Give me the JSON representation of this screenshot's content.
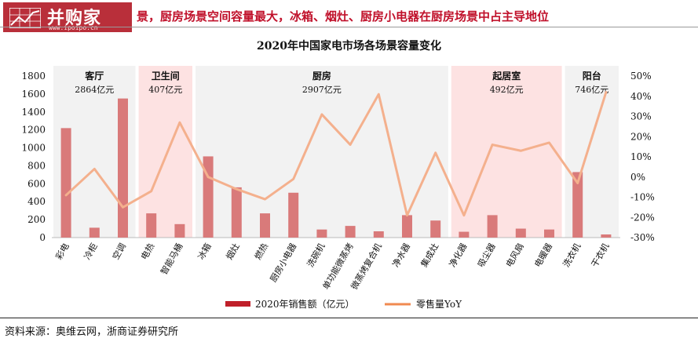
{
  "header": {
    "logo_text": "并购家",
    "logo_url": "www.ipoipo.cn",
    "headline": "景，厨房场景空间容量最大，冰箱、烟灶、厨房小电器在厨房场景中占主导地位"
  },
  "source": "资料来源：奥维云网，浙商证券研究所",
  "colors": {
    "bar": "#d97a7a",
    "line": "#f4b08d",
    "highlight": "#fde2e2",
    "neutral_band": "#f2f2f2",
    "headline": "#c0102a"
  },
  "chart_data": {
    "type": "bar",
    "title": "2020年中国家电市场各场景容量变化",
    "categories": [
      "彩电",
      "冷柜",
      "空调",
      "电热",
      "智能马桶",
      "冰箱",
      "烟灶",
      "燃热",
      "厨房小电器",
      "洗碗机",
      "单功能微蒸烤",
      "微蒸烤复合机",
      "净水器",
      "集成灶",
      "净化器",
      "吸尘器",
      "电风扇",
      "电暖器",
      "洗衣机",
      "干衣机"
    ],
    "series": [
      {
        "name": "2020年销售额（亿元）",
        "type": "bar",
        "axis": "left",
        "values": [
          1220,
          110,
          1550,
          270,
          150,
          905,
          560,
          270,
          500,
          90,
          130,
          70,
          250,
          190,
          65,
          250,
          100,
          90,
          730,
          35
        ]
      },
      {
        "name": "零售量YoY",
        "type": "line",
        "axis": "right",
        "unit": "%",
        "values": [
          -9,
          4,
          -15,
          -7,
          27,
          0,
          -6,
          -11,
          -1,
          31,
          16,
          41,
          -19,
          12,
          -19,
          16,
          13,
          17,
          -3,
          42
        ]
      }
    ],
    "y_left": {
      "min": 0,
      "max": 1800,
      "ticks": [
        "0",
        "200",
        "400",
        "600",
        "800",
        "1000",
        "1200",
        "1400",
        "1600",
        "1800"
      ]
    },
    "y_right": {
      "min": -30,
      "max": 50,
      "ticks": [
        "-30%",
        "-20%",
        "-10%",
        "0%",
        "10%",
        "20%",
        "30%",
        "40%",
        "50%"
      ]
    },
    "scenes": [
      {
        "name": "客厅",
        "total": "2864亿元",
        "from": 0,
        "to": 2,
        "highlight": false
      },
      {
        "name": "卫生间",
        "total": "407亿元",
        "from": 3,
        "to": 4,
        "highlight": true
      },
      {
        "name": "厨房",
        "total": "2907亿元",
        "from": 5,
        "to": 13,
        "highlight": false
      },
      {
        "name": "起居室",
        "total": "492亿元",
        "from": 14,
        "to": 17,
        "highlight": true
      },
      {
        "name": "阳台",
        "total": "746亿元",
        "from": 18,
        "to": 19,
        "highlight": false
      }
    ],
    "legend_position": "bottom"
  }
}
